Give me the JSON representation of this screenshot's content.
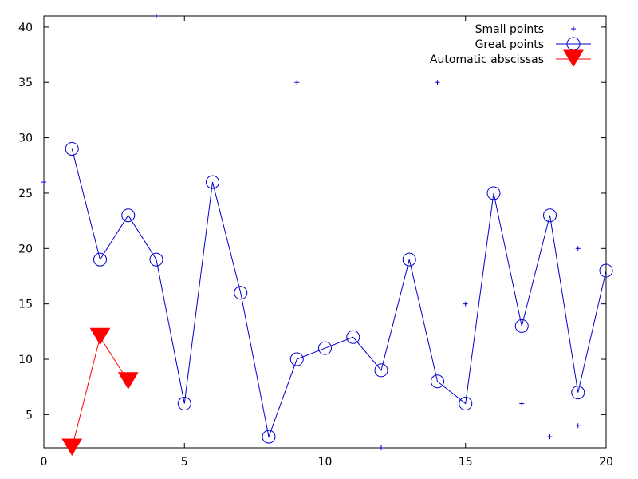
{
  "chart_data": {
    "type": "line",
    "xlim": [
      0,
      20
    ],
    "ylim": [
      2,
      41
    ],
    "xticks": [
      "0",
      "5",
      "10",
      "15",
      "20"
    ],
    "yticks": [
      "5",
      "10",
      "15",
      "20",
      "25",
      "30",
      "35",
      "40"
    ],
    "xtick_values": [
      0,
      5,
      10,
      15,
      20
    ],
    "ytick_values": [
      5,
      10,
      15,
      20,
      25,
      30,
      35,
      40
    ],
    "grid": false,
    "legend_position": "top-right",
    "series": [
      {
        "name": "Small points",
        "style": "points",
        "marker": "plus",
        "color": "#0000cc",
        "x": [
          0,
          4,
          9,
          12,
          14,
          15,
          17,
          18,
          19,
          19
        ],
        "y": [
          26,
          41,
          35,
          2,
          35,
          15,
          6,
          3,
          20,
          4
        ]
      },
      {
        "name": "Great points",
        "style": "linespoints",
        "marker": "circle",
        "color": "#0000cc",
        "x": [
          1,
          2,
          3,
          4,
          5,
          6,
          7,
          8,
          9,
          10,
          11,
          12,
          13,
          14,
          15,
          16,
          17,
          18,
          19,
          20
        ],
        "y": [
          29,
          19,
          23,
          19,
          6,
          26,
          16,
          3,
          10,
          11,
          12,
          9,
          19,
          8,
          6,
          25,
          13,
          23,
          7,
          18
        ]
      },
      {
        "name": "Automatic abscissas",
        "style": "linespoints",
        "marker": "triangle-down",
        "color": "#ff0000",
        "x": [
          1,
          2,
          3
        ],
        "y": [
          2,
          12,
          8
        ]
      }
    ]
  }
}
